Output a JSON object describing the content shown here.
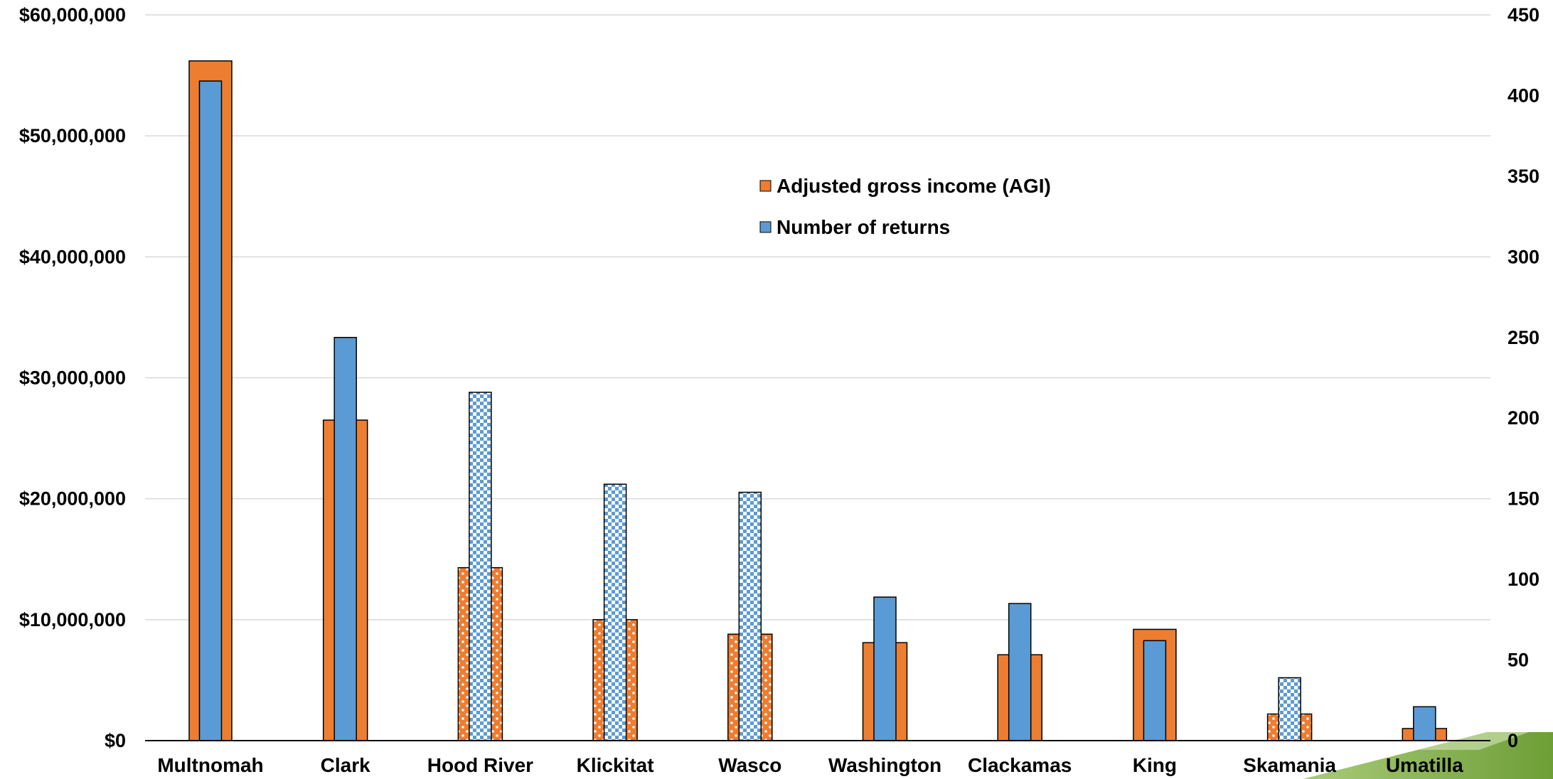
{
  "chart_data": {
    "type": "bar",
    "title": "",
    "categories": [
      "Multnomah",
      "Clark",
      "Hood River",
      "Klickitat",
      "Wasco",
      "Washington",
      "Clackamas",
      "King",
      "Skamania",
      "Umatilla"
    ],
    "series": [
      {
        "name": "Adjusted gross income (AGI)",
        "axis": "left",
        "color": "#ED7D31",
        "values": [
          56200000,
          26500000,
          14300000,
          10000000,
          8800000,
          8100000,
          7100000,
          9200000,
          2200000,
          1000000
        ]
      },
      {
        "name": "Number of returns",
        "axis": "right",
        "color": "#5B9BD5",
        "values": [
          409,
          250,
          216,
          159,
          154,
          89,
          85,
          62,
          39,
          21
        ]
      }
    ],
    "patterned_categories": [
      "Hood River",
      "Klickitat",
      "Wasco",
      "Skamania"
    ],
    "y_left": {
      "range": [
        0,
        60000000
      ],
      "ticks": [
        0,
        10000000,
        20000000,
        30000000,
        40000000,
        50000000,
        60000000
      ],
      "tick_labels": [
        "$0",
        "$10,000,000",
        "$20,000,000",
        "$30,000,000",
        "$40,000,000",
        "$50,000,000",
        "$60,000,000"
      ]
    },
    "y_right": {
      "range": [
        0,
        450
      ],
      "ticks": [
        0,
        50,
        100,
        150,
        200,
        250,
        300,
        350,
        400,
        450
      ],
      "tick_labels": [
        "0",
        "50",
        "100",
        "150",
        "200",
        "250",
        "300",
        "350",
        "400",
        "450"
      ]
    },
    "grid": true,
    "legend_placement": "top-center",
    "decoration_color": "#7DAE3F"
  }
}
